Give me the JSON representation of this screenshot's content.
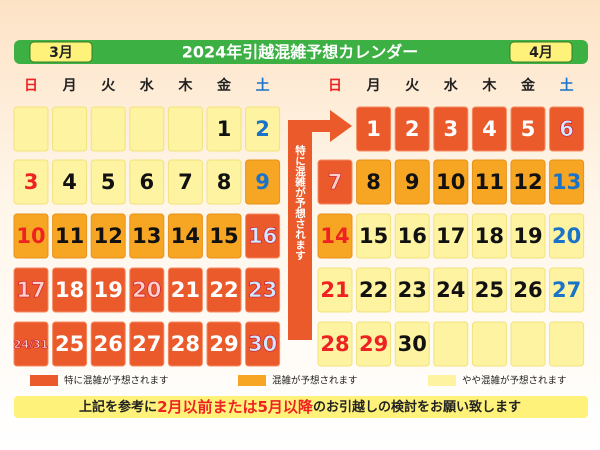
{
  "header": {
    "title": "2024年引越混雑予想カレンダー"
  },
  "months": [
    {
      "label": "3月",
      "weekdays": [
        "日",
        "月",
        "火",
        "水",
        "木",
        "金",
        "土"
      ],
      "cells": [
        {
          "level": "low"
        },
        {
          "level": "low"
        },
        {
          "level": "low"
        },
        {
          "level": "low"
        },
        {
          "level": "low"
        },
        {
          "day": 1,
          "level": "low"
        },
        {
          "day": 2,
          "level": "low"
        },
        {
          "day": 3,
          "level": "low"
        },
        {
          "day": 4,
          "level": "low"
        },
        {
          "day": 5,
          "level": "low"
        },
        {
          "day": 6,
          "level": "low"
        },
        {
          "day": 7,
          "level": "low"
        },
        {
          "day": 8,
          "level": "low"
        },
        {
          "day": 9,
          "level": "mid"
        },
        {
          "day": 10,
          "level": "mid"
        },
        {
          "day": 11,
          "level": "mid"
        },
        {
          "day": 12,
          "level": "mid"
        },
        {
          "day": 13,
          "level": "mid"
        },
        {
          "day": 14,
          "level": "mid"
        },
        {
          "day": 15,
          "level": "mid"
        },
        {
          "day": 16,
          "level": "high"
        },
        {
          "day": 17,
          "level": "high"
        },
        {
          "day": 18,
          "level": "high"
        },
        {
          "day": 19,
          "level": "high"
        },
        {
          "day": 20,
          "level": "high",
          "holiday": true
        },
        {
          "day": 21,
          "level": "high"
        },
        {
          "day": 22,
          "level": "high"
        },
        {
          "day": 23,
          "level": "high"
        },
        {
          "day": "24/31",
          "level": "high"
        },
        {
          "day": 25,
          "level": "high"
        },
        {
          "day": 26,
          "level": "high"
        },
        {
          "day": 27,
          "level": "high"
        },
        {
          "day": 28,
          "level": "high"
        },
        {
          "day": 29,
          "level": "high"
        },
        {
          "day": 30,
          "level": "high"
        }
      ]
    },
    {
      "label": "4月",
      "weekdays": [
        "日",
        "月",
        "火",
        "水",
        "木",
        "金",
        "土"
      ],
      "cells": [
        null,
        {
          "day": 1,
          "level": "high"
        },
        {
          "day": 2,
          "level": "high"
        },
        {
          "day": 3,
          "level": "high"
        },
        {
          "day": 4,
          "level": "high"
        },
        {
          "day": 5,
          "level": "high"
        },
        {
          "day": 6,
          "level": "high"
        },
        {
          "day": 7,
          "level": "high"
        },
        {
          "day": 8,
          "level": "mid"
        },
        {
          "day": 9,
          "level": "mid"
        },
        {
          "day": 10,
          "level": "mid"
        },
        {
          "day": 11,
          "level": "mid"
        },
        {
          "day": 12,
          "level": "mid"
        },
        {
          "day": 13,
          "level": "mid"
        },
        {
          "day": 14,
          "level": "mid"
        },
        {
          "day": 15,
          "level": "low"
        },
        {
          "day": 16,
          "level": "low"
        },
        {
          "day": 17,
          "level": "low"
        },
        {
          "day": 18,
          "level": "low"
        },
        {
          "day": 19,
          "level": "low"
        },
        {
          "day": 20,
          "level": "low"
        },
        {
          "day": 21,
          "level": "low"
        },
        {
          "day": 22,
          "level": "low"
        },
        {
          "day": 23,
          "level": "low"
        },
        {
          "day": 24,
          "level": "low"
        },
        {
          "day": 25,
          "level": "low"
        },
        {
          "day": 26,
          "level": "low"
        },
        {
          "day": 27,
          "level": "low"
        },
        {
          "day": 28,
          "level": "low"
        },
        {
          "day": 29,
          "level": "low",
          "holiday": true
        },
        {
          "day": 30,
          "level": "low"
        },
        {
          "level": "low"
        },
        {
          "level": "low"
        },
        {
          "level": "low"
        },
        {
          "level": "low"
        }
      ]
    }
  ],
  "arrow_text": "特に混雑が予想されます",
  "legend": [
    {
      "level": "high",
      "label": "特に混雑が予想されます"
    },
    {
      "level": "mid",
      "label": "混雑が予想されます"
    },
    {
      "level": "low",
      "label": "やや混雑が予想されます"
    }
  ],
  "footer": {
    "before": "上記を参考に",
    "highlight": "2月以前または5月以降",
    "after": "のお引越しの検討をお願い致します"
  }
}
